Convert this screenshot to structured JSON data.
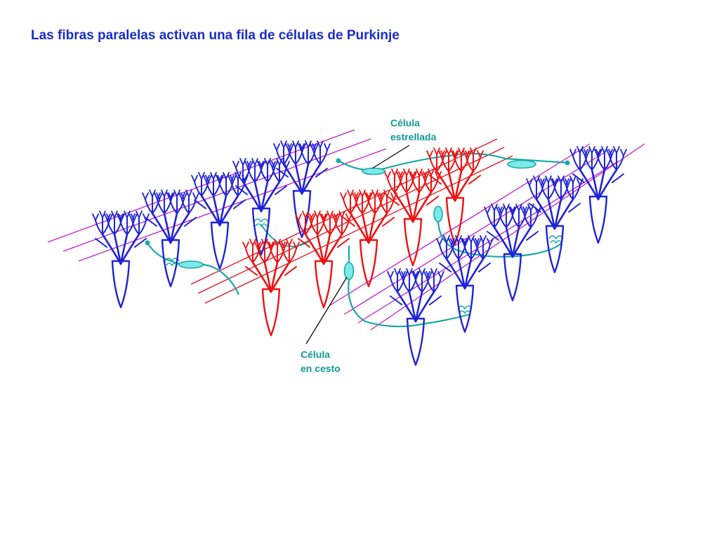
{
  "title": "Las fibras paralelas activan una fila de células de Purkinje",
  "labels": {
    "stellate_line1": "Célula",
    "stellate_line2": "estrellada",
    "basket_line1": "Célula",
    "basket_line2": "en cesto"
  },
  "colors": {
    "title": "#1a2ccc",
    "inactive_cell": "#1e22d8",
    "inactive_fill": "#7f86f0",
    "active_cell": "#ee1111",
    "active_fill": "#f6b2b2",
    "inactive_fiber": "#c01ec8",
    "active_fiber": "#e01020",
    "interneuron": "#1aa8a8",
    "interneuron_fill": "#7ee8e8",
    "label_text": "#0f9a96",
    "leader_line": "#000000"
  },
  "icons": {
    "purkinje_cell": "branching dendritic tree with tapering soma",
    "stellate_cell": "spindle-shaped interneuron",
    "basket_cell": "oval interneuron with basket terminals"
  }
}
